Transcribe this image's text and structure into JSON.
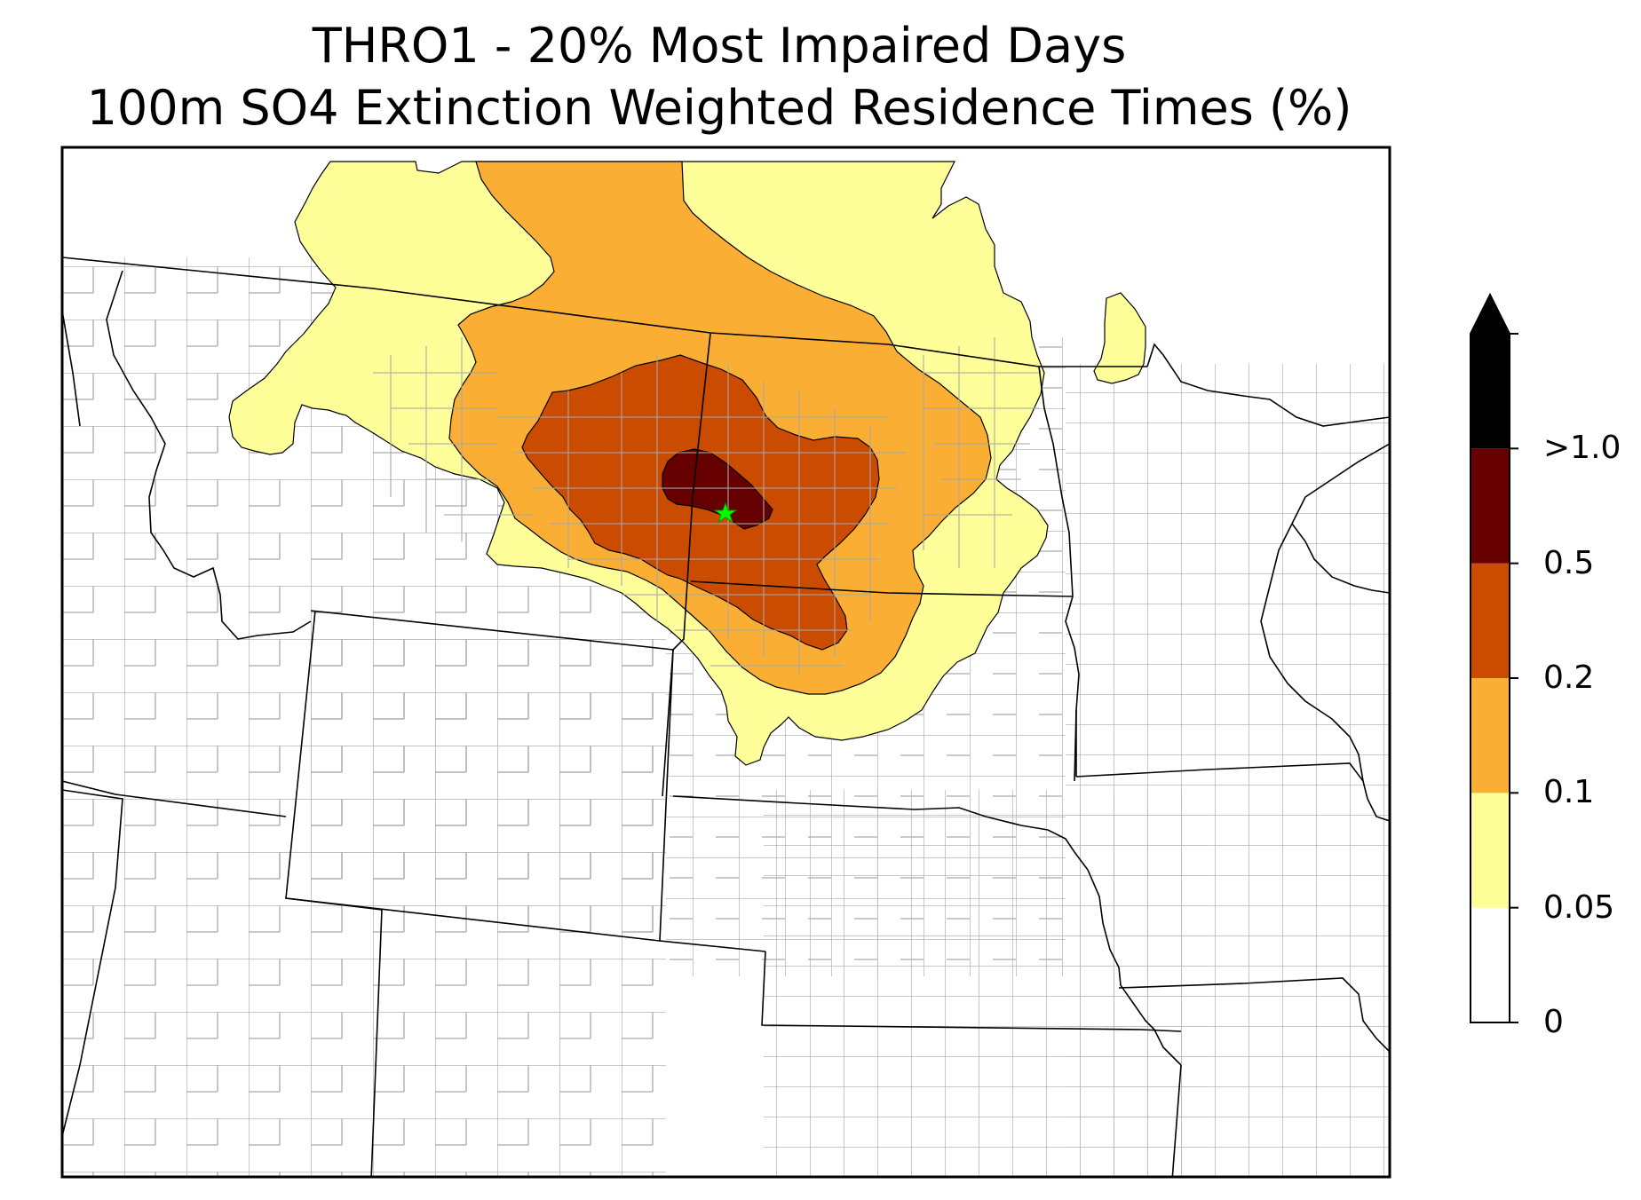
{
  "title": {
    "line1": "THRO1 - 20% Most Impaired Days",
    "line2": "100m SO4 Extinction Weighted Residence Times (%)"
  },
  "colorbar": {
    "bins": [
      {
        "label": "0",
        "color": "#ffffff"
      },
      {
        "label": "0.05",
        "color": "#ffff99"
      },
      {
        "label": "0.1",
        "color": "#fbae34"
      },
      {
        "label": "0.2",
        "color": "#cb4b00"
      },
      {
        "label": "0.5",
        "color": "#660000"
      },
      {
        "label": ">1.0",
        "color": "#000000"
      }
    ],
    "extend": "max"
  },
  "colors": {
    "state_lines": "#000000",
    "county_lines": "#a9a9a9",
    "receptor_marker": "#00ff00"
  },
  "receptor": {
    "name": "THRO1",
    "marker": "star-icon"
  }
}
